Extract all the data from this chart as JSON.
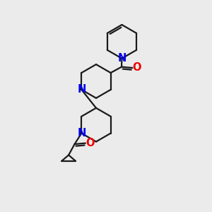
{
  "bg_color": "#ebebeb",
  "bond_color": "#1a1a1a",
  "N_color": "#0000ee",
  "O_color": "#ee0000",
  "line_width": 1.6,
  "font_size": 10.5,
  "xlim": [
    -1.5,
    5.5
  ],
  "ylim": [
    -2.0,
    8.5
  ]
}
